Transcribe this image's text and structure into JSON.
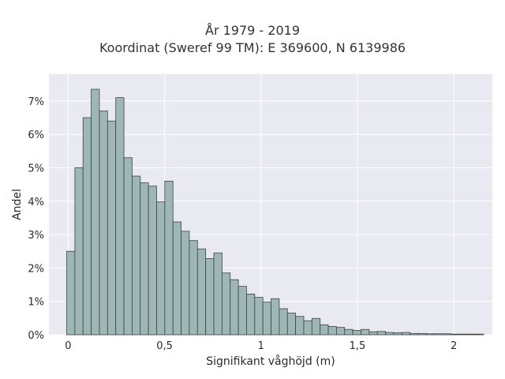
{
  "chart_data": {
    "type": "bar",
    "title": "År 1979 - 2019",
    "subtitle": "Koordinat (Sweref 99 TM): E 369600, N 6139986",
    "xlabel": "Signifikant våghöjd (m)",
    "ylabel": "Andel",
    "xlim": [
      -0.1,
      2.2
    ],
    "ylim": [
      0,
      7.8
    ],
    "x_ticks": [
      {
        "value": 0,
        "label": "0"
      },
      {
        "value": 0.5,
        "label": "0,5"
      },
      {
        "value": 1,
        "label": "1"
      },
      {
        "value": 1.5,
        "label": "1,5"
      },
      {
        "value": 2,
        "label": "2"
      }
    ],
    "y_ticks": [
      {
        "value": 0,
        "label": "0%"
      },
      {
        "value": 1,
        "label": "1%"
      },
      {
        "value": 2,
        "label": "2%"
      },
      {
        "value": 3,
        "label": "3%"
      },
      {
        "value": 4,
        "label": "4%"
      },
      {
        "value": 5,
        "label": "5%"
      },
      {
        "value": 6,
        "label": "6%"
      },
      {
        "value": 7,
        "label": "7%"
      }
    ],
    "grid": true,
    "bin_width": 0.0424,
    "bin_start": -0.0078,
    "values": [
      2.5,
      5.0,
      6.5,
      7.35,
      6.7,
      6.4,
      7.1,
      5.3,
      4.75,
      4.55,
      4.45,
      3.98,
      4.6,
      3.38,
      3.1,
      2.82,
      2.57,
      2.28,
      2.45,
      1.85,
      1.65,
      1.45,
      1.22,
      1.12,
      0.98,
      1.08,
      0.78,
      0.65,
      0.55,
      0.42,
      0.49,
      0.3,
      0.25,
      0.22,
      0.16,
      0.13,
      0.16,
      0.09,
      0.1,
      0.07,
      0.06,
      0.07,
      0.04,
      0.04,
      0.03,
      0.03,
      0.03,
      0.02,
      0.02,
      0.02,
      0.02
    ],
    "colors": {
      "bar_fill": "#9fb6b6",
      "bar_stroke": "#3a4545",
      "plot_bg": "#e9e9f1",
      "grid": "#ffffff"
    }
  }
}
